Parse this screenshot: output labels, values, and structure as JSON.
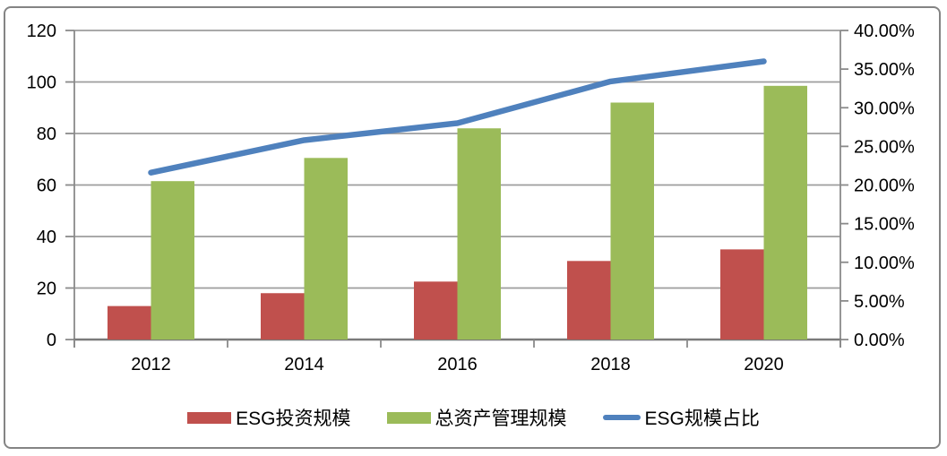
{
  "chart_data": {
    "type": "bar",
    "subtype": "grouped-bar-with-line",
    "categories": [
      "2012",
      "2014",
      "2016",
      "2018",
      "2020"
    ],
    "series": [
      {
        "name": "ESG投资规模",
        "type": "bar",
        "axis": "left",
        "color": "#C0504D",
        "values": [
          13,
          18,
          22.5,
          30.5,
          35
        ]
      },
      {
        "name": "总资产管理规模",
        "type": "bar",
        "axis": "left",
        "color": "#9BBB59",
        "values": [
          61.5,
          70.5,
          82,
          92,
          98.5
        ]
      },
      {
        "name": "ESG规模占比",
        "type": "line",
        "axis": "right",
        "color": "#4F81BD",
        "values": [
          21.6,
          25.8,
          28.0,
          33.4,
          36.0
        ]
      }
    ],
    "left_axis": {
      "min": 0,
      "max": 120,
      "step": 20,
      "ticks": [
        {
          "v": 0,
          "label": "0"
        },
        {
          "v": 20,
          "label": "20"
        },
        {
          "v": 40,
          "label": "40"
        },
        {
          "v": 60,
          "label": "60"
        },
        {
          "v": 80,
          "label": "80"
        },
        {
          "v": 100,
          "label": "100"
        },
        {
          "v": 120,
          "label": "120"
        }
      ]
    },
    "right_axis": {
      "min": 0,
      "max": 40,
      "step": 5,
      "ticks": [
        {
          "v": 0,
          "label": "0.00%"
        },
        {
          "v": 5,
          "label": "5.00%"
        },
        {
          "v": 10,
          "label": "10.00%"
        },
        {
          "v": 15,
          "label": "15.00%"
        },
        {
          "v": 20,
          "label": "20.00%"
        },
        {
          "v": 25,
          "label": "25.00%"
        },
        {
          "v": 30,
          "label": "30.00%"
        },
        {
          "v": 35,
          "label": "35.00%"
        },
        {
          "v": 40,
          "label": "40.00%"
        }
      ]
    },
    "grid": "horizontal",
    "grid_color": "#9D9D9D",
    "axis_color": "#8A8A8A",
    "baseline_color": "#7A7A7A",
    "legend_position": "bottom",
    "title": "",
    "xlabel": "",
    "ylabel_left": "",
    "ylabel_right": ""
  }
}
